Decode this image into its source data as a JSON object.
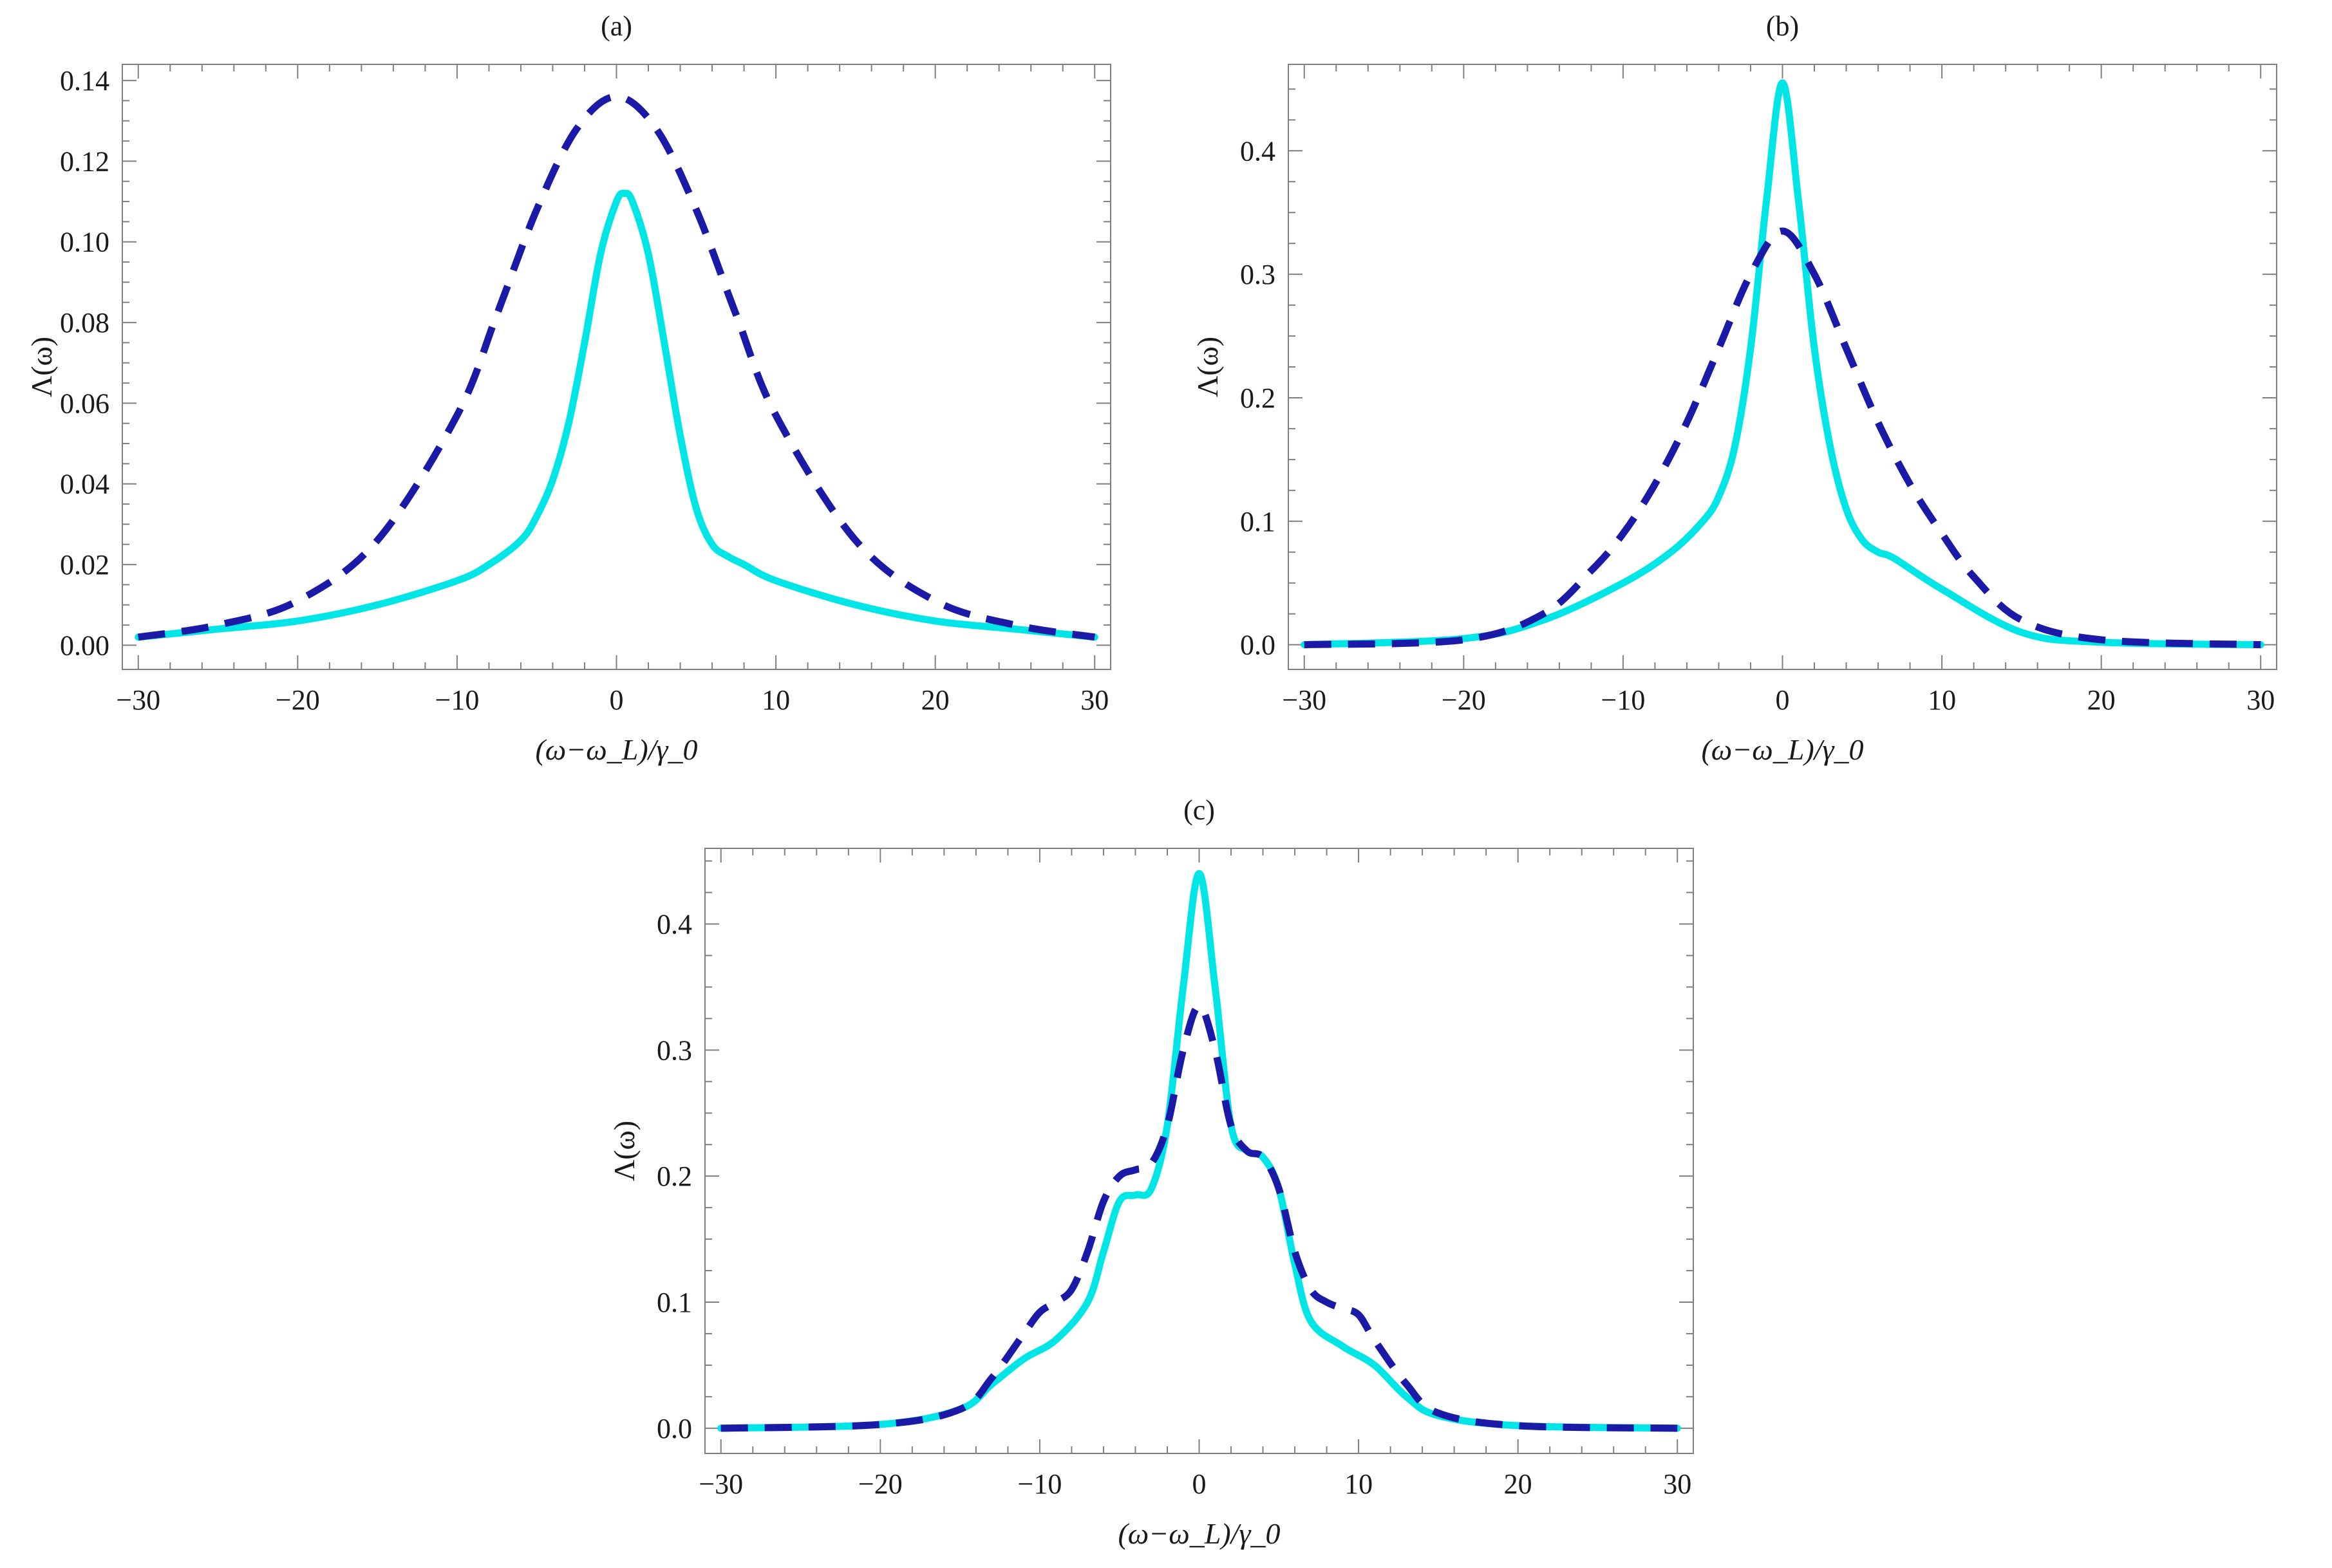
{
  "colors": {
    "solid": "#00e5e5",
    "dashed": "#1a1aa6",
    "frame": "#7f7f7f"
  },
  "chart_data": [
    {
      "type": "line",
      "title": "(a)",
      "xlabel": "(ω−ω_L)/γ_0",
      "ylabel": "Λ(ω)",
      "xlim": [
        -31,
        31
      ],
      "ylim": [
        -0.006,
        0.144
      ],
      "xticks": [
        -30,
        -20,
        -10,
        0,
        10,
        20,
        30
      ],
      "xtick_labels": [
        "−30",
        "−20",
        "−10",
        "0",
        "10",
        "20",
        "30"
      ],
      "yticks": [
        0.0,
        0.02,
        0.04,
        0.06,
        0.08,
        0.1,
        0.12,
        0.14
      ],
      "ytick_labels": [
        "0.00",
        "0.02",
        "0.04",
        "0.06",
        "0.08",
        "0.10",
        "0.12",
        "0.14"
      ],
      "series": [
        {
          "name": "solid",
          "style": "solid",
          "x": [
            -30,
            -25,
            -20,
            -15,
            -10,
            -8,
            -6,
            -5,
            -4,
            -3,
            -2,
            -1,
            0,
            0.5,
            1,
            2,
            3,
            4,
            5,
            6,
            7,
            8,
            10,
            15,
            20,
            25,
            30
          ],
          "y": [
            0.002,
            0.004,
            0.006,
            0.01,
            0.016,
            0.02,
            0.026,
            0.032,
            0.041,
            0.055,
            0.075,
            0.097,
            0.11,
            0.112,
            0.11,
            0.097,
            0.075,
            0.052,
            0.034,
            0.025,
            0.022,
            0.02,
            0.016,
            0.01,
            0.006,
            0.004,
            0.002
          ]
        },
        {
          "name": "dashed",
          "style": "dashed",
          "x": [
            -30,
            -25,
            -20,
            -15,
            -10,
            -7.5,
            -5,
            -2.5,
            0,
            2.5,
            5,
            7.5,
            10,
            15,
            20,
            25,
            30
          ],
          "y": [
            0.002,
            0.005,
            0.011,
            0.026,
            0.057,
            0.082,
            0.108,
            0.128,
            0.136,
            0.128,
            0.108,
            0.082,
            0.057,
            0.026,
            0.011,
            0.005,
            0.002
          ]
        }
      ]
    },
    {
      "type": "line",
      "title": "(b)",
      "xlabel": "(ω−ω_L)/γ_0",
      "ylabel": "Λ(ω)",
      "xlim": [
        -31,
        31
      ],
      "ylim": [
        -0.02,
        0.47
      ],
      "xticks": [
        -30,
        -20,
        -10,
        0,
        10,
        20,
        30
      ],
      "xtick_labels": [
        "−30",
        "−20",
        "−10",
        "0",
        "10",
        "20",
        "30"
      ],
      "yticks": [
        0.0,
        0.1,
        0.2,
        0.3,
        0.4
      ],
      "ytick_labels": [
        "0.0",
        "0.1",
        "0.2",
        "0.3",
        "0.4"
      ],
      "series": [
        {
          "name": "solid",
          "style": "solid",
          "x": [
            -30,
            -20,
            -15,
            -10,
            -7,
            -5,
            -4,
            -3,
            -2,
            -1,
            0,
            1,
            2,
            3,
            4,
            5,
            6,
            7,
            10,
            15,
            20,
            30
          ],
          "y": [
            0.0,
            0.005,
            0.02,
            0.05,
            0.075,
            0.1,
            0.12,
            0.16,
            0.24,
            0.36,
            0.455,
            0.36,
            0.24,
            0.16,
            0.11,
            0.085,
            0.075,
            0.07,
            0.045,
            0.01,
            0.002,
            0.0
          ]
        },
        {
          "name": "dashed",
          "style": "dashed",
          "x": [
            -30,
            -20,
            -15,
            -12,
            -10,
            -8,
            -6,
            -4,
            -2,
            0,
            2,
            4,
            6,
            8,
            10,
            12,
            15,
            20,
            30
          ],
          "y": [
            0.0,
            0.004,
            0.025,
            0.06,
            0.09,
            0.13,
            0.18,
            0.24,
            0.3,
            0.335,
            0.3,
            0.24,
            0.18,
            0.13,
            0.09,
            0.055,
            0.02,
            0.004,
            0.0
          ]
        }
      ]
    },
    {
      "type": "line",
      "title": "(c)",
      "xlabel": "(ω−ω_L)/γ_0",
      "ylabel": "Λ(ω)",
      "xlim": [
        -31,
        31
      ],
      "ylim": [
        -0.02,
        0.46
      ],
      "xticks": [
        -30,
        -20,
        -10,
        0,
        10,
        20,
        30
      ],
      "xtick_labels": [
        "−30",
        "−20",
        "−10",
        "0",
        "10",
        "20",
        "30"
      ],
      "yticks": [
        0.0,
        0.1,
        0.2,
        0.3,
        0.4
      ],
      "ytick_labels": [
        "0.0",
        "0.1",
        "0.2",
        "0.3",
        "0.4"
      ],
      "series": [
        {
          "name": "solid",
          "style": "solid",
          "x": [
            -30,
            -20,
            -15,
            -13,
            -11,
            -9,
            -7,
            -6,
            -5,
            -4,
            -3,
            -2,
            -1,
            0,
            1,
            2,
            3,
            4,
            5,
            6,
            7,
            9,
            11,
            13,
            15,
            20,
            30
          ],
          "y": [
            0.0,
            0.003,
            0.015,
            0.035,
            0.055,
            0.07,
            0.1,
            0.14,
            0.18,
            0.185,
            0.19,
            0.24,
            0.35,
            0.44,
            0.35,
            0.24,
            0.22,
            0.215,
            0.19,
            0.13,
            0.085,
            0.065,
            0.05,
            0.025,
            0.01,
            0.002,
            0.0
          ]
        },
        {
          "name": "dashed",
          "style": "dashed",
          "x": [
            -30,
            -20,
            -15,
            -13,
            -11,
            -10,
            -9,
            -8,
            -7,
            -6,
            -5,
            -4,
            -3,
            -2,
            -1,
            0,
            1,
            2,
            3,
            4,
            5,
            6,
            7,
            8,
            9,
            10,
            11,
            13,
            15,
            20,
            30
          ],
          "y": [
            0.0,
            0.003,
            0.015,
            0.04,
            0.075,
            0.092,
            0.1,
            0.11,
            0.14,
            0.18,
            0.2,
            0.205,
            0.21,
            0.24,
            0.3,
            0.335,
            0.3,
            0.24,
            0.22,
            0.215,
            0.19,
            0.14,
            0.11,
            0.1,
            0.095,
            0.09,
            0.07,
            0.035,
            0.012,
            0.002,
            0.0
          ]
        }
      ]
    }
  ]
}
